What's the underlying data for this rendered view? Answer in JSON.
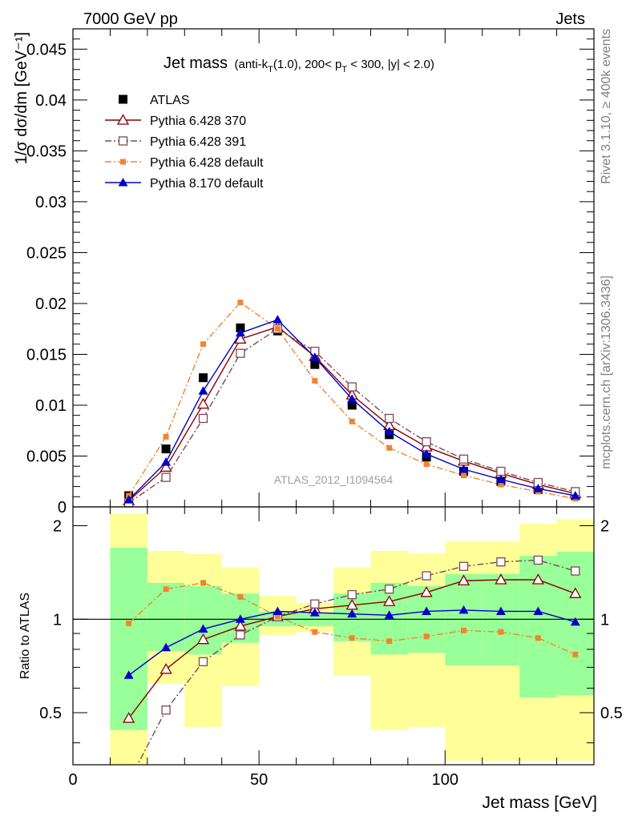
{
  "header": {
    "left": "7000 GeV pp",
    "right": "Jets"
  },
  "side_labels": {
    "rivet": "Rivet 3.1.10, ≥ 400k events",
    "mcplots": "mcplots.cern.ch [arXiv:1306.3436]"
  },
  "watermark": "ATLAS_2012_I1094564",
  "colors": {
    "atlas": "#000000",
    "py6_370": "#8b0000",
    "py6_391": "#7a4a55",
    "py6_default": "#f58231",
    "py8_default": "#0000cc",
    "band_inner": "#99ff99",
    "band_outer": "#ffff99"
  },
  "chart_data": [
    {
      "type": "scatter",
      "title_main": "Jet mass",
      "title_detail_a": "(anti-k",
      "title_detail_sub_a": "T",
      "title_detail_b": "(1.0), 200< p",
      "title_detail_sub_b": "T",
      "title_detail_c": " < 300, |y| < 2.0)",
      "ylabel": "1/σ dσ/dm [GeV⁻¹]",
      "xlim": [
        0,
        140
      ],
      "ylim": [
        0,
        0.047
      ],
      "yticks": [
        "0",
        "0.005",
        "0.01",
        "0.015",
        "0.02",
        "0.025",
        "0.03",
        "0.035",
        "0.04",
        "0.045"
      ],
      "yticks_values": [
        0,
        0.005,
        0.01,
        0.015,
        0.02,
        0.025,
        0.03,
        0.035,
        0.04,
        0.045
      ],
      "legend_position": "top-left",
      "x": [
        15,
        25,
        35,
        45,
        55,
        65,
        75,
        85,
        95,
        105,
        115,
        125,
        135
      ],
      "series": [
        {
          "name": "ATLAS",
          "marker": "square-filled",
          "style": "none",
          "values": [
            0.0011,
            0.0057,
            0.0127,
            0.0176,
            0.0173,
            0.014,
            0.01,
            0.0071,
            0.0049,
            0.0035,
            0.0025,
            0.0017,
            0.0011
          ]
        },
        {
          "name": "Pythia 6.428 370",
          "marker": "triangle-open",
          "style": "solid",
          "values": [
            0.0006,
            0.0039,
            0.0101,
            0.0165,
            0.0177,
            0.0148,
            0.011,
            0.008,
            0.0059,
            0.0045,
            0.0033,
            0.0022,
            0.0013
          ]
        },
        {
          "name": "Pythia 6.428 391",
          "marker": "square-open",
          "style": "dashdot",
          "values": [
            0.0004,
            0.0029,
            0.0087,
            0.0151,
            0.0175,
            0.0153,
            0.0118,
            0.0087,
            0.0064,
            0.0047,
            0.0035,
            0.0024,
            0.0015
          ]
        },
        {
          "name": "Pythia 6.428 default",
          "marker": "square-filled-small",
          "style": "dashdot",
          "values": [
            0.0011,
            0.0069,
            0.016,
            0.0201,
            0.0175,
            0.0124,
            0.0084,
            0.0058,
            0.0042,
            0.0031,
            0.0022,
            0.0015,
            0.0008
          ]
        },
        {
          "name": "Pythia 8.170 default",
          "marker": "triangle-filled",
          "style": "solid",
          "values": [
            0.0007,
            0.0044,
            0.0114,
            0.0171,
            0.0184,
            0.0147,
            0.0106,
            0.0074,
            0.0052,
            0.0037,
            0.0027,
            0.0018,
            0.0011
          ]
        }
      ]
    },
    {
      "type": "scatter",
      "ylabel": "Ratio to ATLAS",
      "xlabel": "Jet mass [GeV]",
      "xlim": [
        0,
        140
      ],
      "ylim": [
        0.34,
        2.3
      ],
      "xticks": [
        "0",
        "50",
        "100"
      ],
      "xticks_values": [
        0,
        50,
        100
      ],
      "yticks": [
        "0.5",
        "1",
        "2"
      ],
      "yticks_values": [
        0.5,
        1,
        2
      ],
      "bins_edges": [
        10,
        20,
        30,
        40,
        50,
        60,
        70,
        80,
        90,
        100,
        110,
        120,
        130,
        140
      ],
      "band_outer": {
        "low": [
          0.2,
          0.62,
          0.45,
          0.61,
          0.89,
          0.91,
          0.66,
          0.44,
          0.45,
          0.35,
          0.35,
          0.35,
          0.35
        ],
        "high": [
          2.19,
          1.66,
          1.62,
          1.47,
          1.19,
          1.13,
          1.47,
          1.66,
          1.63,
          1.78,
          1.78,
          2.03,
          2.1
        ]
      },
      "band_inner": {
        "low": [
          0.44,
          0.79,
          0.77,
          0.84,
          0.95,
          0.95,
          0.85,
          0.77,
          0.78,
          0.71,
          0.71,
          0.56,
          0.57
        ]
      },
      "band_inner_high": [
        1.7,
        1.31,
        1.28,
        1.21,
        1.06,
        1.05,
        1.21,
        1.31,
        1.28,
        1.4,
        1.4,
        1.6,
        1.65
      ],
      "reference_line": 1,
      "x": [
        15,
        25,
        35,
        45,
        55,
        65,
        75,
        85,
        95,
        105,
        115,
        125,
        135
      ],
      "series": [
        {
          "name": "Pythia 6.428 370",
          "marker": "triangle-open",
          "style": "solid",
          "values": [
            0.48,
            0.69,
            0.86,
            0.95,
            1.02,
            1.08,
            1.11,
            1.14,
            1.22,
            1.33,
            1.34,
            1.34,
            1.21
          ]
        },
        {
          "name": "Pythia 6.428 391",
          "marker": "square-open",
          "style": "dashdot",
          "values": [
            0.3,
            0.51,
            0.73,
            0.89,
            1.02,
            1.12,
            1.2,
            1.25,
            1.38,
            1.48,
            1.53,
            1.55,
            1.43
          ]
        },
        {
          "name": "Pythia 6.428 default",
          "marker": "square-filled-small",
          "style": "dashdot",
          "values": [
            0.97,
            1.25,
            1.31,
            1.18,
            1.02,
            0.91,
            0.87,
            0.85,
            0.88,
            0.92,
            0.91,
            0.87,
            0.77
          ]
        },
        {
          "name": "Pythia 8.170 default",
          "marker": "triangle-filled",
          "style": "solid",
          "values": [
            0.66,
            0.81,
            0.93,
            1.0,
            1.06,
            1.05,
            1.04,
            1.03,
            1.06,
            1.07,
            1.06,
            1.06,
            0.98
          ]
        }
      ]
    }
  ]
}
